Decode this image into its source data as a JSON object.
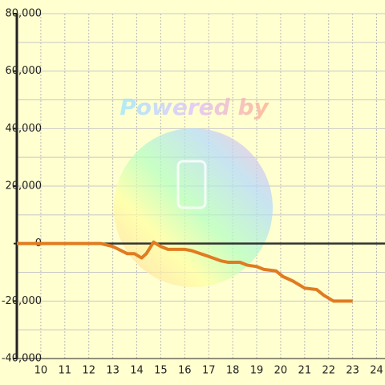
{
  "chart_data": {
    "type": "line",
    "watermark": "Powered by",
    "x": [
      9,
      12.5,
      13,
      13.6,
      13.9,
      14.2,
      14.4,
      14.7,
      15,
      15.3,
      16,
      16.3,
      17,
      17.5,
      17.8,
      18.3,
      18.6,
      19,
      19.3,
      19.8,
      20.1,
      20.5,
      21,
      21.5,
      21.8,
      22.2,
      23
    ],
    "series": [
      {
        "color": "#e07b20",
        "values": [
          0,
          0,
          -1000,
          -3500,
          -3500,
          -5000,
          -3500,
          500,
          -1000,
          -2000,
          -2000,
          -2500,
          -4500,
          -6000,
          -6500,
          -6500,
          -7500,
          -8000,
          -9000,
          -9500,
          -11500,
          -13000,
          -15500,
          -16000,
          -18000,
          -20000,
          -20000
        ]
      }
    ],
    "xlim": [
      9,
      24.35
    ],
    "xticks": [
      10,
      11,
      12,
      13,
      14,
      15,
      16,
      17,
      18,
      19,
      20,
      21,
      22,
      23,
      24
    ],
    "ylim": [
      -40000,
      80000
    ],
    "yticks": [
      {
        "value": 80000,
        "label": "80,000"
      },
      {
        "value": 60000,
        "label": "60,000"
      },
      {
        "value": 40000,
        "label": "40,000"
      },
      {
        "value": 20000,
        "label": "20,000"
      },
      {
        "value": 0,
        "label": "0"
      },
      {
        "value": -20000,
        "label": "-20,000"
      },
      {
        "value": -40000,
        "label": "-40,000"
      }
    ],
    "yminorticks": [
      70000,
      50000,
      30000,
      10000,
      -10000,
      -30000
    ],
    "grid": true
  }
}
